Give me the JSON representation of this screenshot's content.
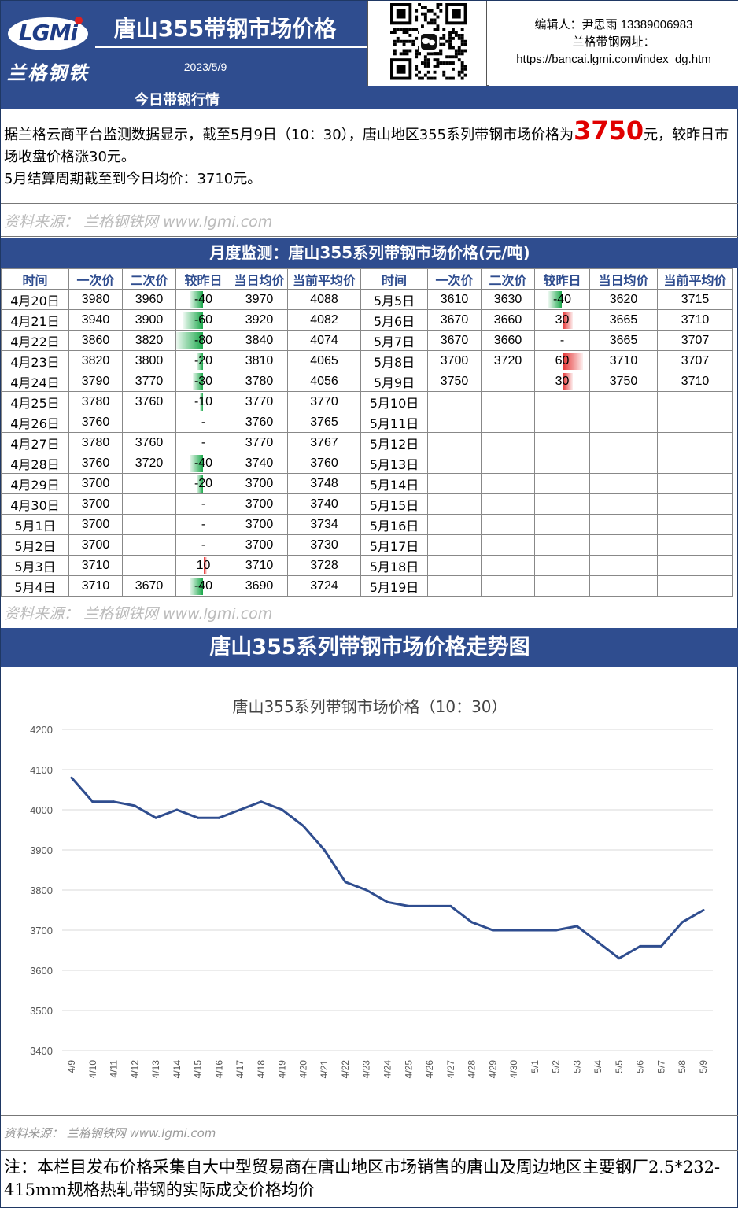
{
  "header": {
    "logo_text": "LGMi",
    "logo_cn": "兰格钢铁",
    "title": "唐山355带钢市场价格",
    "date": "2023/5/9",
    "editor": "编辑人：尹思雨 13389006983",
    "site_label": "兰格带钢网址：",
    "site_url": "https://bancai.lgmi.com/index_dg.htm"
  },
  "today": {
    "bar_title": "今日带钢行情",
    "text_before": "据兰格云商平台监测数据显示，截至5月9日（10：30），唐山地区355系列带钢市场价格为",
    "price": "3750",
    "text_after": "元，较昨日市场收盘价格涨30元。",
    "line2": "5月结算周期截至到今日均价：3710元。",
    "source": "资料来源： 兰格钢铁网 www.lgmi.com"
  },
  "monthly": {
    "title": "月度监测：唐山355系列带钢市场价格(元/吨)",
    "headers": [
      "时间",
      "一次价",
      "二次价",
      "较昨日",
      "当日均价",
      "当前平均价",
      "时间",
      "一次价",
      "二次价",
      "较昨日",
      "当日均价",
      "当前平均价"
    ],
    "left_rows": [
      [
        "4月20日",
        "3980",
        "3960",
        "-40",
        "3970",
        "4088"
      ],
      [
        "4月21日",
        "3940",
        "3900",
        "-60",
        "3920",
        "4082"
      ],
      [
        "4月22日",
        "3860",
        "3820",
        "-80",
        "3840",
        "4074"
      ],
      [
        "4月23日",
        "3820",
        "3800",
        "-20",
        "3810",
        "4065"
      ],
      [
        "4月24日",
        "3790",
        "3770",
        "-30",
        "3780",
        "4056"
      ],
      [
        "4月25日",
        "3780",
        "3760",
        "-10",
        "3770",
        "3770"
      ],
      [
        "4月26日",
        "3760",
        "",
        "-",
        "3760",
        "3765"
      ],
      [
        "4月27日",
        "3780",
        "3760",
        "-",
        "3770",
        "3767"
      ],
      [
        "4月28日",
        "3760",
        "3720",
        "-40",
        "3740",
        "3760"
      ],
      [
        "4月29日",
        "3700",
        "",
        "-20",
        "3700",
        "3748"
      ],
      [
        "4月30日",
        "3700",
        "",
        "-",
        "3700",
        "3740"
      ],
      [
        "5月1日",
        "3700",
        "",
        "-",
        "3700",
        "3734"
      ],
      [
        "5月2日",
        "3700",
        "",
        "-",
        "3700",
        "3730"
      ],
      [
        "5月3日",
        "3710",
        "",
        "10",
        "3710",
        "3728"
      ],
      [
        "5月4日",
        "3710",
        "3670",
        "-40",
        "3690",
        "3724"
      ]
    ],
    "right_rows": [
      [
        "5月5日",
        "3610",
        "3630",
        "-40",
        "3620",
        "3715"
      ],
      [
        "5月6日",
        "3670",
        "3660",
        "30",
        "3665",
        "3710"
      ],
      [
        "5月7日",
        "3670",
        "3660",
        "-",
        "3665",
        "3707"
      ],
      [
        "5月8日",
        "3700",
        "3720",
        "60",
        "3710",
        "3707"
      ],
      [
        "5月9日",
        "3750",
        "",
        "30",
        "3750",
        "3710"
      ],
      [
        "5月10日",
        "",
        "",
        "",
        "",
        ""
      ],
      [
        "5月11日",
        "",
        "",
        "",
        "",
        ""
      ],
      [
        "5月12日",
        "",
        "",
        "",
        "",
        ""
      ],
      [
        "5月13日",
        "",
        "",
        "",
        "",
        ""
      ],
      [
        "5月14日",
        "",
        "",
        "",
        "",
        ""
      ],
      [
        "5月15日",
        "",
        "",
        "",
        "",
        ""
      ],
      [
        "5月16日",
        "",
        "",
        "",
        "",
        ""
      ],
      [
        "5月17日",
        "",
        "",
        "",
        "",
        ""
      ],
      [
        "5月18日",
        "",
        "",
        "",
        "",
        ""
      ],
      [
        "5月19日",
        "",
        "",
        "",
        "",
        ""
      ]
    ],
    "source": "资料来源： 兰格钢铁网 www.lgmi.com"
  },
  "chart_section": {
    "bar_title": "唐山355系列带钢市场价格走势图",
    "source": "资料来源： 兰格钢铁网 www.lgmi.com"
  },
  "chart_data": {
    "type": "line",
    "title": "唐山355系列带钢市场价格（10：30）",
    "xlabel": "",
    "ylabel": "",
    "ylim": [
      3400,
      4200
    ],
    "yticks": [
      3400,
      3500,
      3600,
      3700,
      3800,
      3900,
      4000,
      4100,
      4200
    ],
    "grid": true,
    "color": "#2f4d8f",
    "x": [
      "4/9",
      "4/10",
      "4/11",
      "4/12",
      "4/13",
      "4/14",
      "4/15",
      "4/16",
      "4/17",
      "4/18",
      "4/19",
      "4/20",
      "4/21",
      "4/22",
      "4/23",
      "4/24",
      "4/25",
      "4/26",
      "4/27",
      "4/28",
      "4/29",
      "4/30",
      "5/1",
      "5/2",
      "5/3",
      "5/4",
      "5/5",
      "5/6",
      "5/7",
      "5/8",
      "5/9"
    ],
    "values": [
      4080,
      4020,
      4020,
      4010,
      3980,
      4000,
      3980,
      3980,
      4000,
      4020,
      4000,
      3960,
      3900,
      3820,
      3800,
      3770,
      3760,
      3760,
      3760,
      3720,
      3700,
      3700,
      3700,
      3700,
      3710,
      3670,
      3630,
      3660,
      3660,
      3720,
      3750
    ]
  },
  "note": "注：本栏目发布价格采集自大中型贸易商在唐山地区市场销售的唐山及周边地区主要钢厂2.5*232-415mm规格热轧带钢的实际成交价格均价",
  "colors": {
    "brand_blue": "#2f4d8f",
    "price_red": "#e00000",
    "down_green": "#1aa84a",
    "up_red": "#e53030"
  }
}
